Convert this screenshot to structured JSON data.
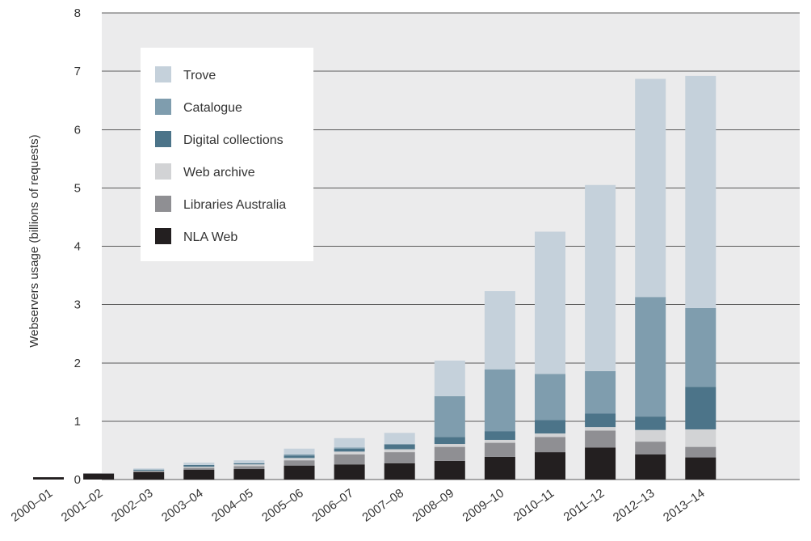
{
  "chart_data": {
    "type": "bar",
    "stacked": true,
    "title": "",
    "xlabel": "",
    "ylabel": "Webservers usage (billions of requests)",
    "ylim": [
      0,
      8
    ],
    "yticks": [
      0,
      1,
      2,
      3,
      4,
      5,
      6,
      7,
      8
    ],
    "grid": true,
    "legend_position": "top-left",
    "categories": [
      "2000–01",
      "2001–02",
      "2002–03",
      "2003–04",
      "2004–05",
      "2005–06",
      "2006–07",
      "2007–08",
      "2008–09",
      "2009–10",
      "2010–11",
      "2011–12",
      "2012–13",
      "2013–14"
    ],
    "series": [
      {
        "name": "NLA Web",
        "color": "#231f20",
        "values": [
          0.04,
          0.1,
          0.13,
          0.17,
          0.18,
          0.24,
          0.26,
          0.28,
          0.32,
          0.39,
          0.47,
          0.55,
          0.43,
          0.38
        ]
      },
      {
        "name": "Libraries Australia",
        "color": "#8f8f93",
        "values": [
          0.0,
          0.01,
          0.01,
          0.03,
          0.05,
          0.09,
          0.17,
          0.19,
          0.24,
          0.24,
          0.26,
          0.29,
          0.22,
          0.18
        ]
      },
      {
        "name": "Web archive",
        "color": "#d2d3d5",
        "values": [
          0.0,
          0.0,
          0.01,
          0.02,
          0.03,
          0.04,
          0.05,
          0.05,
          0.05,
          0.05,
          0.06,
          0.06,
          0.2,
          0.3
        ]
      },
      {
        "name": "Digital collections",
        "color": "#4c7489",
        "values": [
          0.0,
          0.0,
          0.02,
          0.03,
          0.02,
          0.04,
          0.05,
          0.08,
          0.12,
          0.15,
          0.23,
          0.23,
          0.23,
          0.73
        ]
      },
      {
        "name": "Catalogue",
        "color": "#7f9dae",
        "values": [
          0.0,
          0.0,
          0.0,
          0.0,
          0.0,
          0.02,
          0.02,
          0.01,
          0.7,
          1.06,
          0.79,
          0.73,
          2.05,
          1.35
        ]
      },
      {
        "name": "Trove",
        "color": "#c5d1db",
        "values": [
          0.0,
          0.0,
          0.02,
          0.04,
          0.05,
          0.1,
          0.16,
          0.19,
          0.61,
          1.34,
          2.44,
          3.19,
          3.74,
          3.98
        ]
      }
    ],
    "legend_order": [
      "Trove",
      "Catalogue",
      "Digital collections",
      "Web archive",
      "Libraries Australia",
      "NLA Web"
    ],
    "plot_background": "#ebebec"
  }
}
